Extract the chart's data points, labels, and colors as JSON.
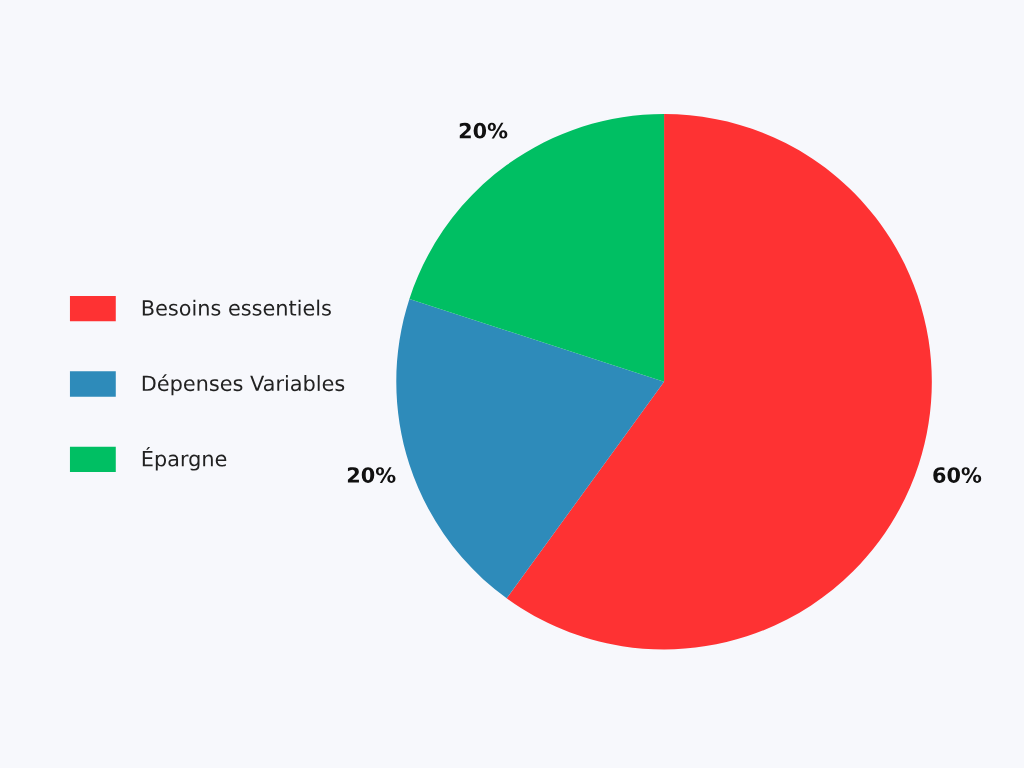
{
  "chart_data": {
    "type": "pie",
    "categories": [
      "Besoins essentiels",
      "Dépenses Variables",
      "Épargne"
    ],
    "values": [
      60,
      20,
      20
    ],
    "colors": [
      "#fe3233",
      "#2e8bba",
      "#00bf63"
    ],
    "value_labels": [
      "60%",
      "20%",
      "20%"
    ],
    "legend": "left"
  }
}
